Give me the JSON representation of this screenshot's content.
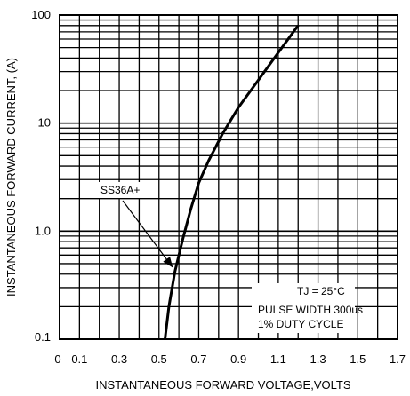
{
  "chart_data": {
    "type": "line",
    "title": "",
    "xlabel": "INSTANTANEOUS FORWARD VOLTAGE,VOLTS",
    "ylabel": "INSTANTANEOUS FORWARD CURRENT, (A)",
    "xlim": [
      0,
      1.7
    ],
    "ylim": [
      0.1,
      100
    ],
    "yscale": "log",
    "grid": true,
    "x_ticks": [
      0,
      0.1,
      0.3,
      0.5,
      0.7,
      0.9,
      1.1,
      1.3,
      1.5,
      1.7
    ],
    "x_tick_labels": [
      "0",
      "0.1",
      "0.3",
      "0.5",
      "0.7",
      "0.9",
      "1.1",
      "1.3",
      "1.5",
      "1.7"
    ],
    "y_ticks": [
      0.1,
      1.0,
      10,
      100
    ],
    "y_tick_labels": [
      "0.1",
      "1.0",
      "10",
      "100"
    ],
    "series": [
      {
        "name": "SS36A+",
        "x": [
          0.53,
          0.55,
          0.58,
          0.62,
          0.66,
          0.7,
          0.75,
          0.82,
          0.9,
          1.0,
          1.1,
          1.2
        ],
        "y": [
          0.1,
          0.2,
          0.42,
          0.85,
          1.6,
          2.8,
          4.5,
          8.0,
          14,
          25,
          45,
          80
        ]
      }
    ],
    "annotations": [
      {
        "text": "SS36A+",
        "points_to": {
          "x": 0.58,
          "y": 0.45
        }
      }
    ],
    "conditions_box": [
      "TJ = 25°C",
      "PULSE WIDTH 300us",
      "1% DUTY CYCLE"
    ]
  }
}
